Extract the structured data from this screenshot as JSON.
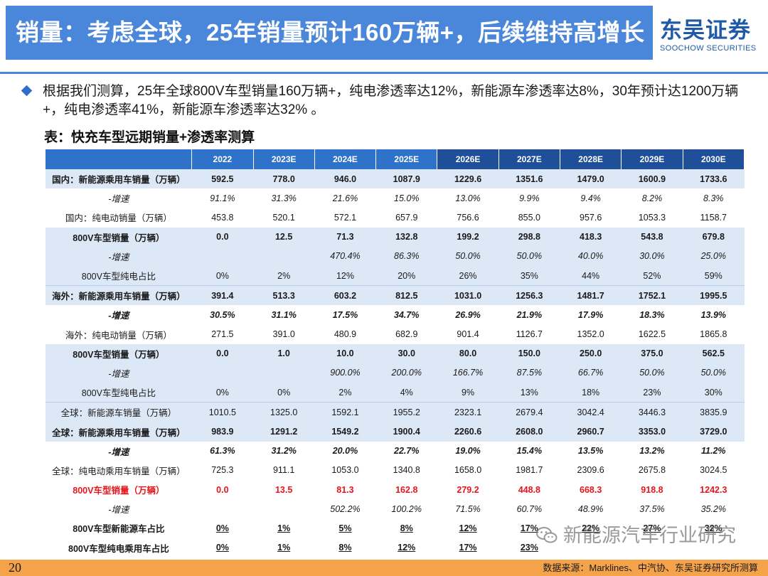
{
  "header": {
    "title": "销量：考虑全球，25年销量预计160万辆+，后续维持高增长",
    "logo_cn": "东吴证券",
    "logo_en": "SOOCHOW SECURITIES"
  },
  "bullet": {
    "icon": "diamond-bullet",
    "text": "根据我们测算，25年全球800V车型销量160万辆+，纯电渗透率达12%，新能源车渗透率达8%，30年预计达1200万辆+，纯电渗透率41%，新能源车渗透率达32% 。"
  },
  "table": {
    "title": "表：快充车型远期销量+渗透率测算",
    "columns": [
      "2022",
      "2023E",
      "2024E",
      "2025E",
      "2026E",
      "2027E",
      "2028E",
      "2029E",
      "2030E"
    ],
    "rows": [
      {
        "label": "国内：新能源乘用车销量（万辆）",
        "values": [
          "592.5",
          "778.0",
          "946.0",
          "1087.9",
          "1229.6",
          "1351.6",
          "1479.0",
          "1600.9",
          "1733.6"
        ]
      },
      {
        "label": "-增速",
        "values": [
          "91.1%",
          "31.3%",
          "21.6%",
          "15.0%",
          "13.0%",
          "9.9%",
          "9.4%",
          "8.2%",
          "8.3%"
        ]
      },
      {
        "label": "国内：纯电动销量（万辆）",
        "values": [
          "453.8",
          "520.1",
          "572.1",
          "657.9",
          "756.6",
          "855.0",
          "957.6",
          "1053.3",
          "1158.7"
        ]
      },
      {
        "label": "800V车型销量（万辆）",
        "values": [
          "0.0",
          "12.5",
          "71.3",
          "132.8",
          "199.2",
          "298.8",
          "418.3",
          "543.8",
          "679.8"
        ]
      },
      {
        "label": "-增速",
        "values": [
          "",
          "",
          "470.4%",
          "86.3%",
          "50.0%",
          "50.0%",
          "40.0%",
          "30.0%",
          "25.0%"
        ]
      },
      {
        "label": "800V车型纯电占比",
        "values": [
          "0%",
          "2%",
          "12%",
          "20%",
          "26%",
          "35%",
          "44%",
          "52%",
          "59%"
        ]
      },
      {
        "label": "海外：新能源乘用车销量（万辆）",
        "values": [
          "391.4",
          "513.3",
          "603.2",
          "812.5",
          "1031.0",
          "1256.3",
          "1481.7",
          "1752.1",
          "1995.5"
        ]
      },
      {
        "label": "-增速",
        "values": [
          "30.5%",
          "31.1%",
          "17.5%",
          "34.7%",
          "26.9%",
          "21.9%",
          "17.9%",
          "18.3%",
          "13.9%"
        ]
      },
      {
        "label": "海外：纯电动销量（万辆）",
        "values": [
          "271.5",
          "391.0",
          "480.9",
          "682.9",
          "901.4",
          "1126.7",
          "1352.0",
          "1622.5",
          "1865.8"
        ]
      },
      {
        "label": "800V车型销量（万辆）",
        "values": [
          "0.0",
          "1.0",
          "10.0",
          "30.0",
          "80.0",
          "150.0",
          "250.0",
          "375.0",
          "562.5"
        ]
      },
      {
        "label": "-增速",
        "values": [
          "",
          "",
          "900.0%",
          "200.0%",
          "166.7%",
          "87.5%",
          "66.7%",
          "50.0%",
          "50.0%"
        ]
      },
      {
        "label": "800V车型纯电占比",
        "values": [
          "0%",
          "0%",
          "2%",
          "4%",
          "9%",
          "13%",
          "18%",
          "23%",
          "30%"
        ]
      },
      {
        "label": "全球：新能源车销量（万辆）",
        "values": [
          "1010.5",
          "1325.0",
          "1592.1",
          "1955.2",
          "2323.1",
          "2679.4",
          "3042.4",
          "3446.3",
          "3835.9"
        ]
      },
      {
        "label": "全球：新能源乘用车销量（万辆）",
        "values": [
          "983.9",
          "1291.2",
          "1549.2",
          "1900.4",
          "2260.6",
          "2608.0",
          "2960.7",
          "3353.0",
          "3729.0"
        ]
      },
      {
        "label": "-增速",
        "values": [
          "61.3%",
          "31.2%",
          "20.0%",
          "22.7%",
          "19.0%",
          "15.4%",
          "13.5%",
          "13.2%",
          "11.2%"
        ]
      },
      {
        "label": "全球：纯电动乘用车销量（万辆）",
        "values": [
          "725.3",
          "911.1",
          "1053.0",
          "1340.8",
          "1658.0",
          "1981.7",
          "2309.6",
          "2675.8",
          "3024.5"
        ]
      },
      {
        "label": "800V车型销量（万辆）",
        "values": [
          "0.0",
          "13.5",
          "81.3",
          "162.8",
          "279.2",
          "448.8",
          "668.3",
          "918.8",
          "1242.3"
        ]
      },
      {
        "label": "-增速",
        "values": [
          "",
          "",
          "502.2%",
          "100.2%",
          "71.5%",
          "60.7%",
          "48.9%",
          "37.5%",
          "35.2%"
        ]
      },
      {
        "label": "800V车型新能源车占比",
        "values": [
          "0%",
          "1%",
          "5%",
          "8%",
          "12%",
          "17%",
          "22%",
          "27%",
          "32%"
        ]
      },
      {
        "label": "800V车型纯电乘用车占比",
        "values": [
          "0%",
          "1%",
          "8%",
          "12%",
          "17%",
          "23%",
          "",
          "",
          ""
        ]
      }
    ]
  },
  "watermark": {
    "icon": "wechat-icon",
    "text": "新能源汽车行业研究"
  },
  "footer": {
    "page_number": "20",
    "source": "数据来源：Marklines、中汽协、东吴证券研究所测算"
  }
}
